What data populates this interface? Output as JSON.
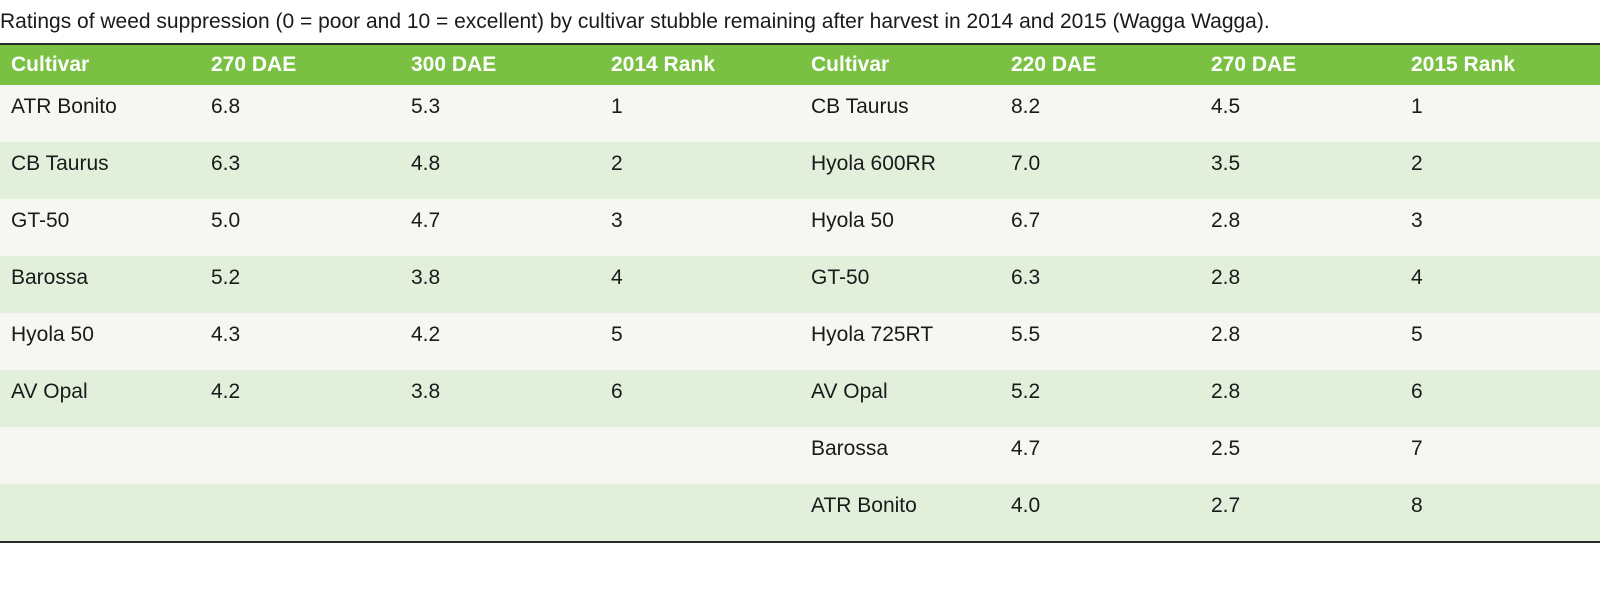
{
  "caption": "Ratings of weed suppression (0 = poor and 10 = excellent) by cultivar stubble remaining after harvest in 2014 and 2015 (Wagga Wagga).",
  "colors": {
    "header_bg": "#7ac143",
    "row_light": "#f6f7f3",
    "row_green": "#e2efda",
    "header_text": "#ffffff"
  },
  "headers": [
    "Cultivar",
    "270 DAE",
    "300 DAE",
    "2014 Rank",
    "Cultivar",
    "220 DAE",
    "270 DAE",
    "2015 Rank"
  ],
  "rows": [
    [
      "ATR Bonito",
      "6.8",
      "5.3",
      "1",
      "CB Taurus",
      "8.2",
      "4.5",
      "1"
    ],
    [
      "CB Taurus",
      "6.3",
      "4.8",
      "2",
      "Hyola 600RR",
      "7.0",
      "3.5",
      "2"
    ],
    [
      "GT-50",
      "5.0",
      "4.7",
      "3",
      "Hyola 50",
      "6.7",
      "2.8",
      "3"
    ],
    [
      "Barossa",
      "5.2",
      "3.8",
      "4",
      "GT-50",
      "6.3",
      "2.8",
      "4"
    ],
    [
      "Hyola 50",
      "4.3",
      "4.2",
      "5",
      "Hyola 725RT",
      "5.5",
      "2.8",
      "5"
    ],
    [
      "AV Opal",
      "4.2",
      "3.8",
      "6",
      "AV Opal",
      "5.2",
      "2.8",
      "6"
    ],
    [
      "",
      "",
      "",
      "",
      "Barossa",
      "4.7",
      "2.5",
      "7"
    ],
    [
      "",
      "",
      "",
      "",
      "ATR Bonito",
      "4.0",
      "2.7",
      "8"
    ]
  ]
}
